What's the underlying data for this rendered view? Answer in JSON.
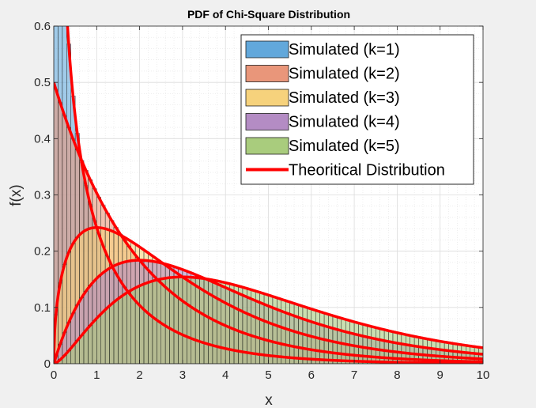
{
  "chart_data": {
    "type": "bar",
    "title": "PDF of Chi-Square Distribution",
    "xlabel": "x",
    "ylabel": "f(x)",
    "xlim": [
      0,
      10
    ],
    "ylim": [
      0,
      0.6
    ],
    "xticks": [
      "0",
      "1",
      "2",
      "3",
      "4",
      "5",
      "6",
      "7",
      "8",
      "9",
      "10"
    ],
    "yticks": [
      "0",
      "0.1",
      "0.2",
      "0.3",
      "0.4",
      "0.5",
      "0.6"
    ],
    "grid": true,
    "minor_grid": true,
    "legend_position": "top-right",
    "bin_width": 0.1,
    "series": [
      {
        "name": "Simulated (k=1)",
        "k": 1,
        "kind": "histogram",
        "color": "#62a8db"
      },
      {
        "name": "Simulated (k=2)",
        "k": 2,
        "kind": "histogram",
        "color": "#e9967a"
      },
      {
        "name": "Simulated (k=3)",
        "k": 3,
        "kind": "histogram",
        "color": "#f6d27c"
      },
      {
        "name": "Simulated (k=4)",
        "k": 4,
        "kind": "histogram",
        "color": "#b48cc4"
      },
      {
        "name": "Simulated (k=5)",
        "k": 5,
        "kind": "histogram",
        "color": "#a9cc7d"
      },
      {
        "name": "Theoritical Distribution",
        "kind": "line",
        "color": "#ff0000",
        "k_values": [
          1,
          2,
          3,
          4,
          5
        ]
      }
    ]
  }
}
